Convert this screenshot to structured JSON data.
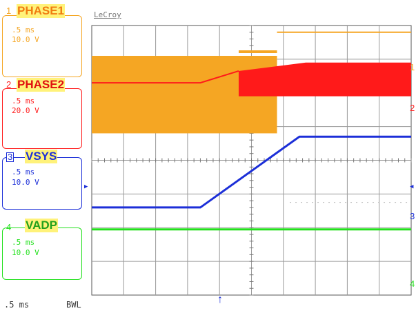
{
  "scope": {
    "brand": "LeCroy",
    "timebase": ".5 ms",
    "bandwidth_label": "BWL"
  },
  "channels": [
    {
      "num": "1",
      "name": "PHASE1",
      "time": ".5 ms",
      "volts": "10.0 V",
      "color": "#f5a623"
    },
    {
      "num": "2",
      "name": "PHASE2",
      "time": ".5 ms",
      "volts": "20.0 V",
      "color": "#ff1a1a"
    },
    {
      "num": "3",
      "name": "VSYS",
      "time": ".5 ms",
      "volts": "10.0 V",
      "color": "#1c2fd8"
    },
    {
      "num": "4",
      "name": "VADP",
      "time": ".5 ms",
      "volts": "10.0 V",
      "color": "#22e01c"
    }
  ],
  "chart_data": {
    "type": "line",
    "title": "",
    "xlabel": "",
    "ylabel": "",
    "x_divisions": 10,
    "y_divisions": 8,
    "grid": true,
    "x_time_per_div_ms": 0.5,
    "series": [
      {
        "name": "PHASE1",
        "volts_per_div": 10.0,
        "kind": "switching_then_off",
        "switching_until_div": 5.8,
        "high_div": 7.1,
        "low_div": 4.8,
        "final_div": 7.8
      },
      {
        "name": "PHASE2",
        "volts_per_div": 20.0,
        "kind": "ramp_then_switching",
        "start_div": 6.3,
        "ramp_start_div": 3.4,
        "switch_start_div": 4.6,
        "ramp_end_div": 6.9,
        "high_div": 6.9,
        "low_div": 5.9
      },
      {
        "name": "VSYS",
        "volts_per_div": 10.0,
        "kind": "ramp",
        "start_div": 2.6,
        "ramp_start_div": 3.4,
        "ramp_end_div": 6.5,
        "final_div": 4.7
      },
      {
        "name": "VADP",
        "volts_per_div": 10.0,
        "kind": "flat",
        "level_div": 1.95
      }
    ]
  }
}
